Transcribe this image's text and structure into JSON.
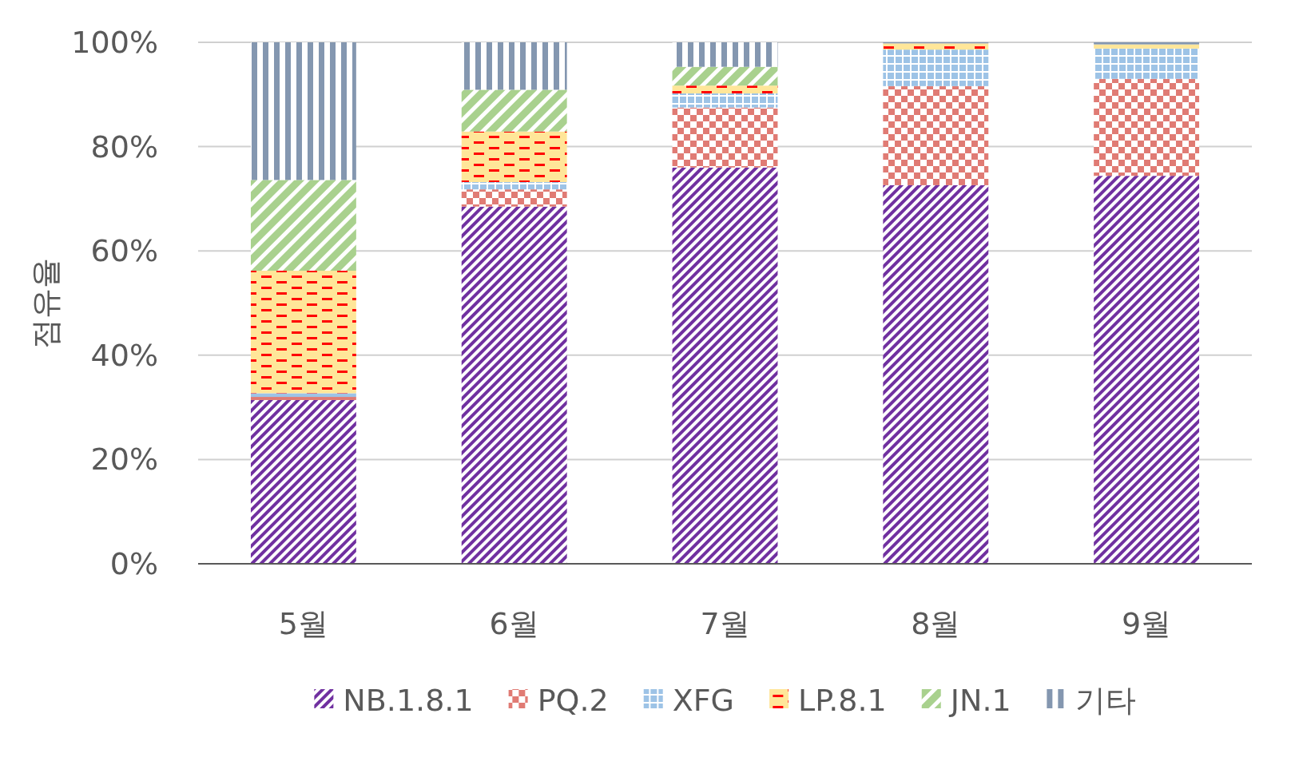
{
  "chart_data": {
    "type": "bar",
    "stacked": true,
    "ylabel": "점유율",
    "categories": [
      "5월",
      "6월",
      "7월",
      "8월",
      "9월"
    ],
    "series": [
      {
        "name": "NB.1.8.1",
        "color": "#7030a0",
        "values": [
          31.4,
          68.5,
          76.0,
          72.6,
          74.4
        ]
      },
      {
        "name": "PQ.2",
        "color": "#e07b74",
        "values": [
          0.6,
          3.3,
          11.5,
          19.0,
          18.6
        ]
      },
      {
        "name": "XFG",
        "color": "#9dc3e6",
        "values": [
          0.7,
          1.4,
          2.7,
          7.0,
          5.8
        ]
      },
      {
        "name": "LP.8.1",
        "color": "#ffe699",
        "values": [
          23.5,
          9.7,
          1.5,
          1.2,
          0.8
        ]
      },
      {
        "name": "JN.1",
        "color": "#a9d18e",
        "values": [
          17.4,
          8.0,
          3.6,
          0,
          0
        ]
      },
      {
        "name": "기타",
        "color": "#8497b0",
        "values": [
          26.4,
          9.1,
          4.7,
          0.2,
          0.4
        ]
      }
    ],
    "ylim": [
      0,
      100
    ],
    "yticks": [
      {
        "value": 0,
        "label": "0%"
      },
      {
        "value": 20,
        "label": "20%"
      },
      {
        "value": 40,
        "label": "40%"
      },
      {
        "value": 60,
        "label": "60%"
      },
      {
        "value": 80,
        "label": "80%"
      },
      {
        "value": 100,
        "label": "100%"
      }
    ],
    "grid": "y",
    "legend": "bottom"
  }
}
